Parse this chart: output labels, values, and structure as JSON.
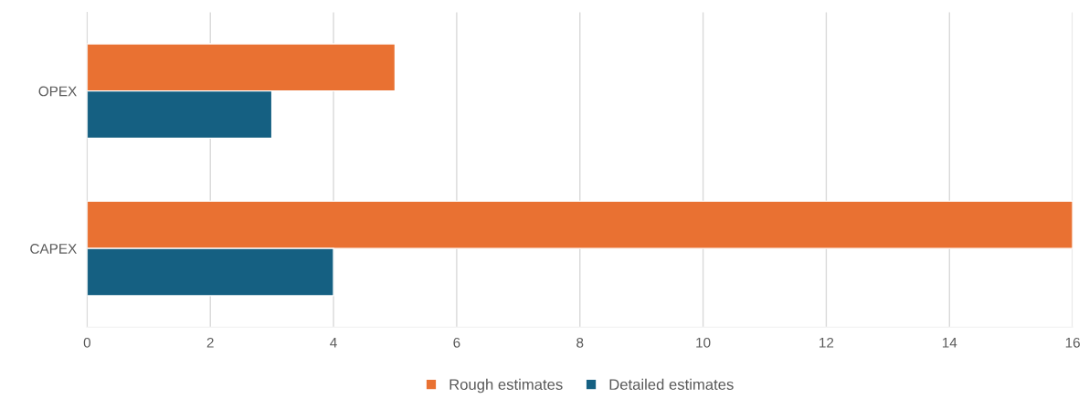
{
  "chart_data": {
    "type": "bar",
    "orientation": "horizontal",
    "categories": [
      "OPEX",
      "CAPEX"
    ],
    "series": [
      {
        "name": "Rough estimates",
        "color": "#e97132",
        "values": [
          5,
          16
        ]
      },
      {
        "name": "Detailed estimates",
        "color": "#156082",
        "values": [
          3,
          4
        ]
      }
    ],
    "xlim": [
      0,
      16
    ],
    "xticks": [
      0,
      2,
      4,
      6,
      8,
      10,
      12,
      14,
      16
    ],
    "grid": "x",
    "legend": "bottom"
  }
}
